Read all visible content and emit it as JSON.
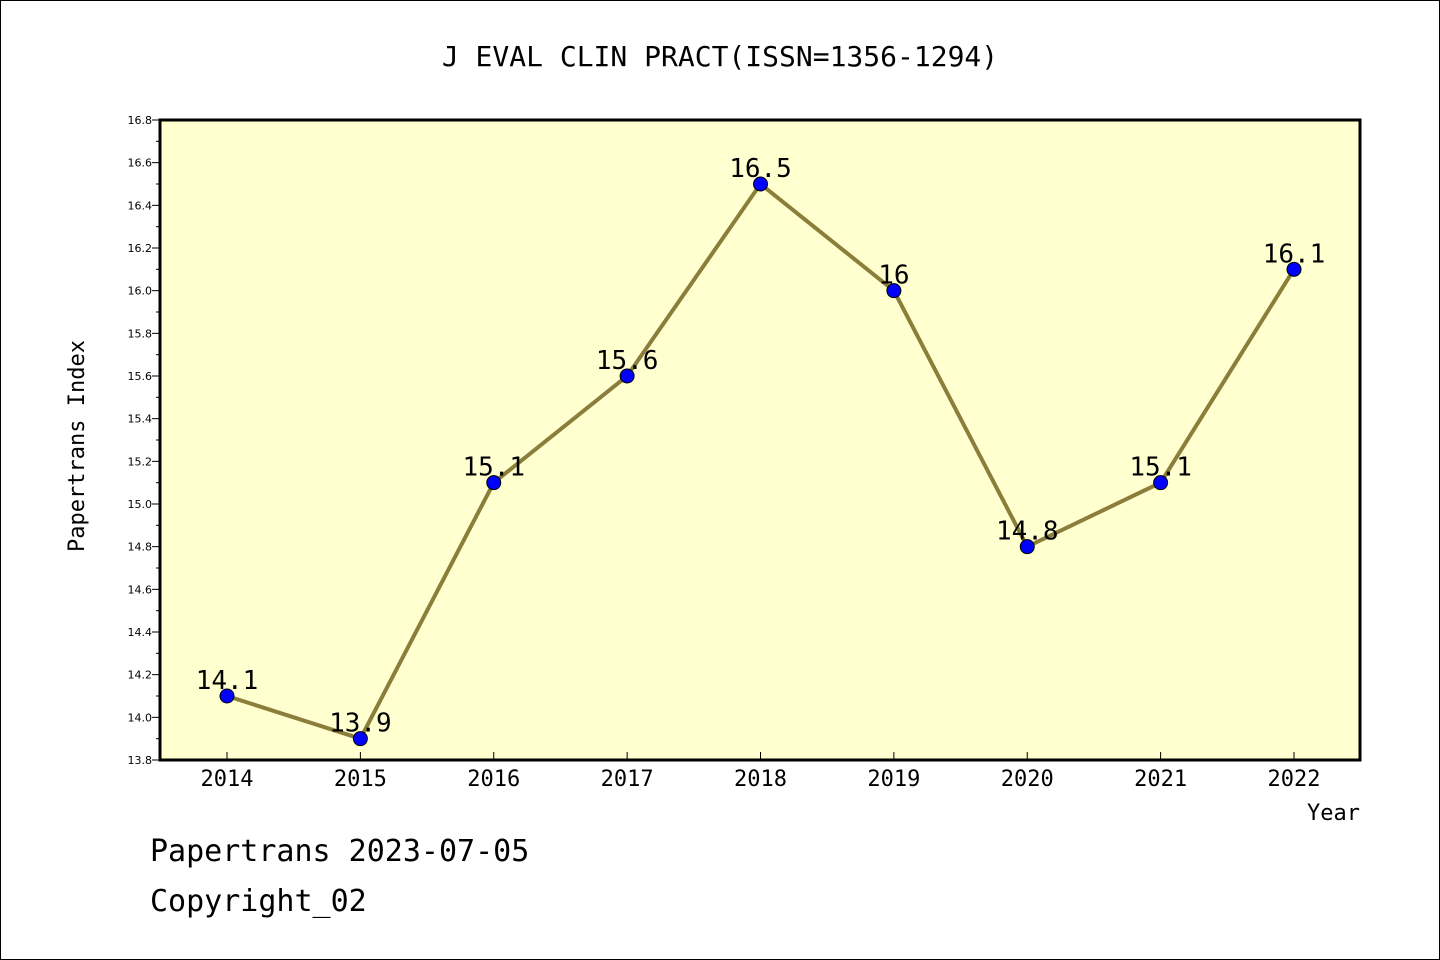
{
  "footer": {
    "line1": "Papertrans 2023-07-05",
    "line2": "Copyright_02"
  },
  "chart_data": {
    "type": "line",
    "title": "J EVAL CLIN PRACT(ISSN=1356-1294)",
    "xlabel": "Year",
    "ylabel": "Papertrans Index",
    "categories": [
      "2014",
      "2015",
      "2016",
      "2017",
      "2018",
      "2019",
      "2020",
      "2021",
      "2022"
    ],
    "series": [
      {
        "values": [
          14.1,
          13.9,
          15.1,
          15.6,
          16.5,
          16.0,
          14.8,
          15.1,
          16.1
        ],
        "data_labels": [
          "14.1",
          "13.9",
          "15.1",
          "15.6",
          "16.5",
          "16",
          "14.8",
          "15.1",
          "16.1"
        ]
      }
    ],
    "ylim": [
      13.8,
      16.8
    ],
    "y_ticks": [
      "13.8",
      "14.0",
      "14.2",
      "14.4",
      "14.6",
      "14.8",
      "15.0",
      "15.2",
      "15.4",
      "15.6",
      "15.8",
      "16.0",
      "16.2",
      "16.4",
      "16.6",
      "16.8"
    ],
    "grid": false,
    "colors": {
      "plot_background": "#ffffd0",
      "line": "#8b7d3a",
      "marker": "#0000ff"
    }
  }
}
